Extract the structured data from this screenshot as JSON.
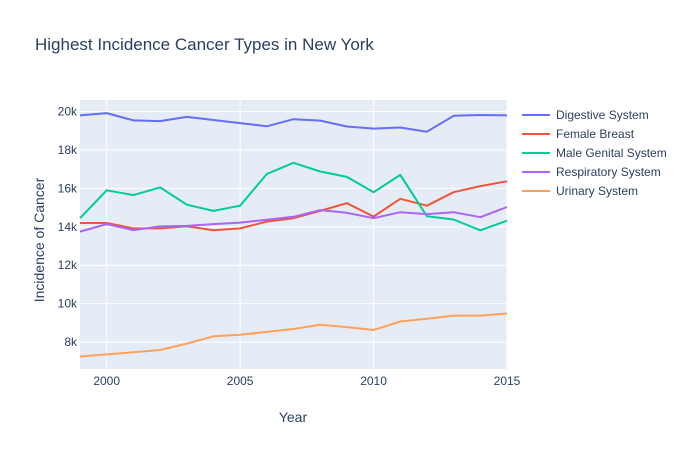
{
  "chart_data": {
    "type": "line",
    "title": "Highest Incidence Cancer Types in New York",
    "xlabel": "Year",
    "ylabel": "Incidence of Cancer",
    "xlim": [
      1999,
      2015
    ],
    "ylim": [
      6600,
      20600
    ],
    "x_ticks": [
      2000,
      2005,
      2010,
      2015
    ],
    "y_ticks": [
      {
        "value": 8000,
        "label": "8k"
      },
      {
        "value": 10000,
        "label": "10k"
      },
      {
        "value": 12000,
        "label": "12k"
      },
      {
        "value": 14000,
        "label": "14k"
      },
      {
        "value": 16000,
        "label": "16k"
      },
      {
        "value": 18000,
        "label": "18k"
      },
      {
        "value": 20000,
        "label": "20k"
      }
    ],
    "grid": true,
    "legend_position": "top-right",
    "x": [
      1999,
      2000,
      2001,
      2002,
      2003,
      2004,
      2005,
      2006,
      2007,
      2008,
      2009,
      2010,
      2011,
      2012,
      2013,
      2014,
      2015
    ],
    "series": [
      {
        "name": "Digestive System",
        "color": "#636efa",
        "values": [
          19800,
          19920,
          19540,
          19500,
          19720,
          19560,
          19400,
          19230,
          19600,
          19530,
          19220,
          19110,
          19170,
          18950,
          19780,
          19820,
          19800
        ]
      },
      {
        "name": "Female Breast",
        "color": "#ef553b",
        "values": [
          14200,
          14200,
          13920,
          13920,
          14030,
          13820,
          13920,
          14270,
          14450,
          14830,
          15230,
          14530,
          15460,
          15100,
          15800,
          16120,
          16370
        ]
      },
      {
        "name": "Male Genital System",
        "color": "#00cc96",
        "values": [
          14450,
          15900,
          15650,
          16050,
          15150,
          14830,
          15100,
          16750,
          17330,
          16880,
          16600,
          15800,
          16700,
          14550,
          14380,
          13820,
          14320
        ]
      },
      {
        "name": "Respiratory System",
        "color": "#ab63fa",
        "values": [
          13750,
          14140,
          13830,
          14020,
          14050,
          14140,
          14220,
          14370,
          14520,
          14870,
          14730,
          14450,
          14760,
          14660,
          14760,
          14500,
          15030
        ]
      },
      {
        "name": "Urinary System",
        "color": "#ffa15a",
        "values": [
          7250,
          7360,
          7470,
          7590,
          7920,
          8300,
          8380,
          8530,
          8680,
          8900,
          8780,
          8630,
          9070,
          9220,
          9380,
          9380,
          9490
        ]
      }
    ]
  }
}
